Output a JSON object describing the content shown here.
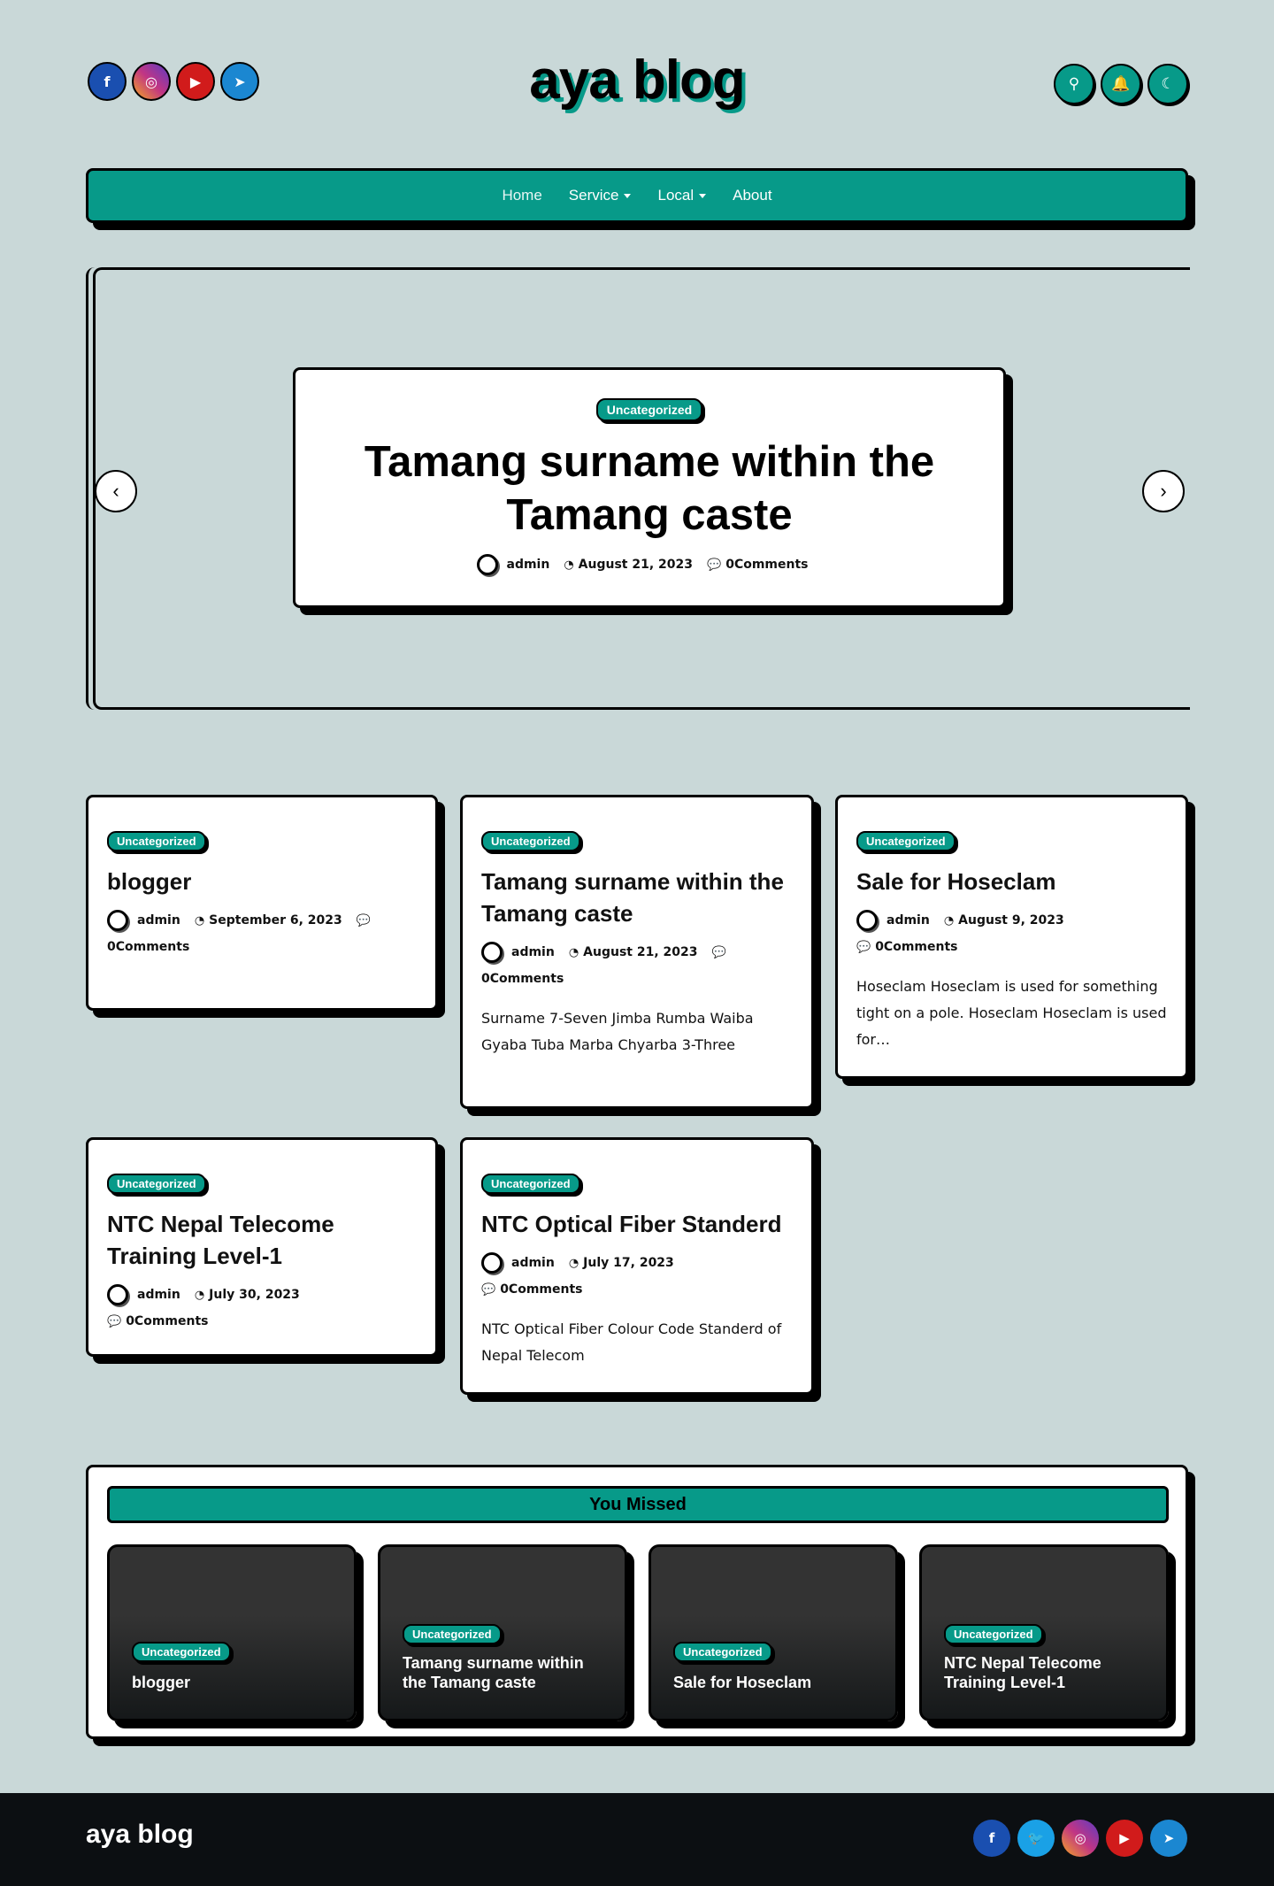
{
  "site": {
    "title": "aya blog"
  },
  "colors": {
    "accent": "#079a89",
    "background": "#c9d8d8",
    "facebook": "#1a4fb0",
    "instagram": "#c13584",
    "youtube": "#d11b1b",
    "telegram": "#1b87d1",
    "twitter": "#1aa1e6",
    "footer": "#0c0f12"
  },
  "header": {
    "socials": [
      {
        "name": "facebook-icon",
        "glyph": "f"
      },
      {
        "name": "instagram-icon",
        "glyph": "◎"
      },
      {
        "name": "youtube-icon",
        "glyph": "▶"
      },
      {
        "name": "telegram-icon",
        "glyph": "➤"
      }
    ],
    "tools": [
      {
        "name": "search-icon",
        "glyph": "⚲"
      },
      {
        "name": "bell-icon",
        "glyph": "🔔"
      },
      {
        "name": "moon-icon",
        "glyph": "☾"
      }
    ]
  },
  "nav": {
    "items": [
      {
        "label": "Home",
        "dropdown": false
      },
      {
        "label": "Service",
        "dropdown": true
      },
      {
        "label": "Local",
        "dropdown": true
      },
      {
        "label": "About",
        "dropdown": false
      }
    ]
  },
  "hero": {
    "category": "Uncategorized",
    "title": "Tamang surname within the Tamang caste",
    "author": "admin",
    "date": "August 21, 2023",
    "comments": "0Comments",
    "prev_icon": "‹",
    "next_icon": "›"
  },
  "posts": [
    {
      "category": "Uncategorized",
      "title": "blogger",
      "author": "admin",
      "date": "September 6, 2023",
      "comments": "0Comments",
      "excerpt": ""
    },
    {
      "category": "Uncategorized",
      "title": "Tamang surname within the Tamang caste",
      "author": "admin",
      "date": "August 21, 2023",
      "comments": "0Comments",
      "excerpt": "Surname 7-Seven Jimba Rumba Waiba Gyaba Tuba Marba Chyarba 3-Three"
    },
    {
      "category": "Uncategorized",
      "title": "Sale for Hoseclam",
      "author": "admin",
      "date": "August 9, 2023",
      "comments": "0Comments",
      "excerpt": "Hoseclam Hoseclam is used for something tight on a pole. Hoseclam Hoseclam is used for…"
    },
    {
      "category": "Uncategorized",
      "title": "NTC Nepal Telecome Training Level-1",
      "author": "admin",
      "date": "July 30, 2023",
      "comments": "0Comments",
      "excerpt": ""
    },
    {
      "category": "Uncategorized",
      "title": "NTC Optical Fiber Standerd",
      "author": "admin",
      "date": "July 17, 2023",
      "comments": "0Comments",
      "excerpt": "NTC Optical Fiber Colour Code Standerd of Nepal Telecom"
    }
  ],
  "missed": {
    "heading": "You Missed",
    "items": [
      {
        "category": "Uncategorized",
        "title": "blogger"
      },
      {
        "category": "Uncategorized",
        "title": "Tamang surname within the Tamang caste"
      },
      {
        "category": "Uncategorized",
        "title": "Sale for Hoseclam"
      },
      {
        "category": "Uncategorized",
        "title": "NTC Nepal Telecome Training Level-1"
      }
    ]
  },
  "footer": {
    "title": "aya blog",
    "socials": [
      {
        "name": "facebook-icon",
        "glyph": "f"
      },
      {
        "name": "twitter-icon",
        "glyph": "🐦"
      },
      {
        "name": "instagram-icon",
        "glyph": "◎"
      },
      {
        "name": "youtube-icon",
        "glyph": "▶"
      },
      {
        "name": "telegram-icon",
        "glyph": "➤"
      }
    ]
  }
}
